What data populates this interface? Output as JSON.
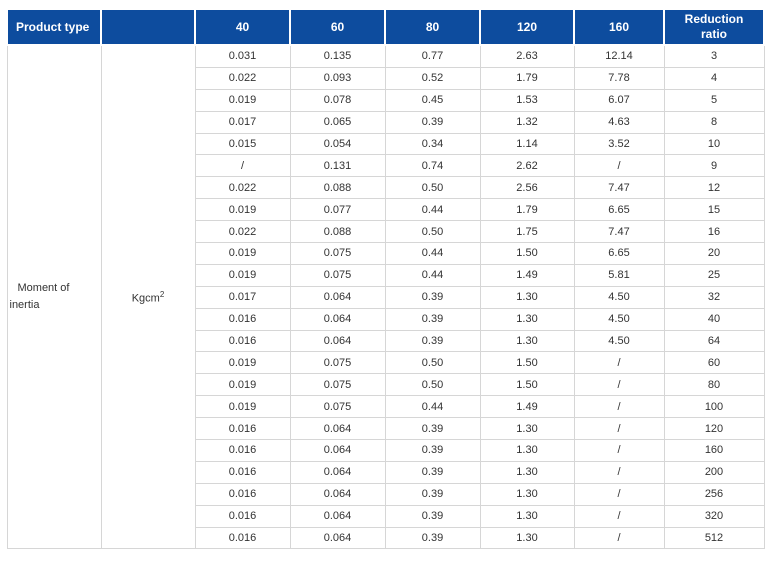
{
  "colors": {
    "header_bg": "#0d4c9e",
    "header_text": "#ffffff",
    "body_text": "#333333",
    "grid_border": "#d6d6d6"
  },
  "table": {
    "header": {
      "product_type": "Product type",
      "unit_column": "",
      "sizes": [
        "40",
        "60",
        "80",
        "120",
        "160"
      ],
      "reduction_ratio": "Reduction ratio"
    },
    "group_label": "Moment of inertia",
    "unit_base": "Kgcm",
    "unit_sup": "2",
    "rows": [
      {
        "values": [
          "0.031",
          "0.135",
          "0.77",
          "2.63",
          "12.14"
        ],
        "ratio": "3"
      },
      {
        "values": [
          "0.022",
          "0.093",
          "0.52",
          "1.79",
          "7.78"
        ],
        "ratio": "4"
      },
      {
        "values": [
          "0.019",
          "0.078",
          "0.45",
          "1.53",
          "6.07"
        ],
        "ratio": "5"
      },
      {
        "values": [
          "0.017",
          "0.065",
          "0.39",
          "1.32",
          "4.63"
        ],
        "ratio": "8"
      },
      {
        "values": [
          "0.015",
          "0.054",
          "0.34",
          "1.14",
          "3.52"
        ],
        "ratio": "10"
      },
      {
        "values": [
          "/",
          "0.131",
          "0.74",
          "2.62",
          "/"
        ],
        "ratio": "9"
      },
      {
        "values": [
          "0.022",
          "0.088",
          "0.50",
          "2.56",
          "7.47"
        ],
        "ratio": "12"
      },
      {
        "values": [
          "0.019",
          "0.077",
          "0.44",
          "1.79",
          "6.65"
        ],
        "ratio": "15"
      },
      {
        "values": [
          "0.022",
          "0.088",
          "0.50",
          "1.75",
          "7.47"
        ],
        "ratio": "16"
      },
      {
        "values": [
          "0.019",
          "0.075",
          "0.44",
          "1.50",
          "6.65"
        ],
        "ratio": "20"
      },
      {
        "values": [
          "0.019",
          "0.075",
          "0.44",
          "1.49",
          "5.81"
        ],
        "ratio": "25"
      },
      {
        "values": [
          "0.017",
          "0.064",
          "0.39",
          "1.30",
          "4.50"
        ],
        "ratio": "32"
      },
      {
        "values": [
          "0.016",
          "0.064",
          "0.39",
          "1.30",
          "4.50"
        ],
        "ratio": "40"
      },
      {
        "values": [
          "0.016",
          "0.064",
          "0.39",
          "1.30",
          "4.50"
        ],
        "ratio": "64"
      },
      {
        "values": [
          "0.019",
          "0.075",
          "0.50",
          "1.50",
          "/"
        ],
        "ratio": "60"
      },
      {
        "values": [
          "0.019",
          "0.075",
          "0.50",
          "1.50",
          "/"
        ],
        "ratio": "80"
      },
      {
        "values": [
          "0.019",
          "0.075",
          "0.44",
          "1.49",
          "/"
        ],
        "ratio": "100"
      },
      {
        "values": [
          "0.016",
          "0.064",
          "0.39",
          "1.30",
          "/"
        ],
        "ratio": "120"
      },
      {
        "values": [
          "0.016",
          "0.064",
          "0.39",
          "1.30",
          "/"
        ],
        "ratio": "160"
      },
      {
        "values": [
          "0.016",
          "0.064",
          "0.39",
          "1.30",
          "/"
        ],
        "ratio": "200"
      },
      {
        "values": [
          "0.016",
          "0.064",
          "0.39",
          "1.30",
          "/"
        ],
        "ratio": "256"
      },
      {
        "values": [
          "0.016",
          "0.064",
          "0.39",
          "1.30",
          "/"
        ],
        "ratio": "320"
      },
      {
        "values": [
          "0.016",
          "0.064",
          "0.39",
          "1.30",
          "/"
        ],
        "ratio": "512"
      }
    ]
  },
  "chart_data": {
    "type": "table",
    "title": "Moment of inertia (Kgcm^2) by frame size and reduction ratio",
    "columns": [
      "40",
      "60",
      "80",
      "120",
      "160",
      "Reduction ratio"
    ],
    "rows": [
      [
        "0.031",
        "0.135",
        "0.77",
        "2.63",
        "12.14",
        "3"
      ],
      [
        "0.022",
        "0.093",
        "0.52",
        "1.79",
        "7.78",
        "4"
      ],
      [
        "0.019",
        "0.078",
        "0.45",
        "1.53",
        "6.07",
        "5"
      ],
      [
        "0.017",
        "0.065",
        "0.39",
        "1.32",
        "4.63",
        "8"
      ],
      [
        "0.015",
        "0.054",
        "0.34",
        "1.14",
        "3.52",
        "10"
      ],
      [
        "/",
        "0.131",
        "0.74",
        "2.62",
        "/",
        "9"
      ],
      [
        "0.022",
        "0.088",
        "0.50",
        "2.56",
        "7.47",
        "12"
      ],
      [
        "0.019",
        "0.077",
        "0.44",
        "1.79",
        "6.65",
        "15"
      ],
      [
        "0.022",
        "0.088",
        "0.50",
        "1.75",
        "7.47",
        "16"
      ],
      [
        "0.019",
        "0.075",
        "0.44",
        "1.50",
        "6.65",
        "20"
      ],
      [
        "0.019",
        "0.075",
        "0.44",
        "1.49",
        "5.81",
        "25"
      ],
      [
        "0.017",
        "0.064",
        "0.39",
        "1.30",
        "4.50",
        "32"
      ],
      [
        "0.016",
        "0.064",
        "0.39",
        "1.30",
        "4.50",
        "40"
      ],
      [
        "0.016",
        "0.064",
        "0.39",
        "1.30",
        "4.50",
        "64"
      ],
      [
        "0.019",
        "0.075",
        "0.50",
        "1.50",
        "/",
        "60"
      ],
      [
        "0.019",
        "0.075",
        "0.50",
        "1.50",
        "/",
        "80"
      ],
      [
        "0.019",
        "0.075",
        "0.44",
        "1.49",
        "/",
        "100"
      ],
      [
        "0.016",
        "0.064",
        "0.39",
        "1.30",
        "/",
        "120"
      ],
      [
        "0.016",
        "0.064",
        "0.39",
        "1.30",
        "/",
        "160"
      ],
      [
        "0.016",
        "0.064",
        "0.39",
        "1.30",
        "/",
        "200"
      ],
      [
        "0.016",
        "0.064",
        "0.39",
        "1.30",
        "/",
        "256"
      ],
      [
        "0.016",
        "0.064",
        "0.39",
        "1.30",
        "/",
        "320"
      ],
      [
        "0.016",
        "0.064",
        "0.39",
        "1.30",
        "/",
        "512"
      ]
    ]
  }
}
